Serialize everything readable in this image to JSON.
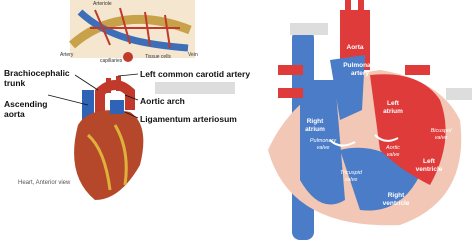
{
  "capillary_diagram": {
    "labels": [
      "Arteriole",
      "Artery",
      "capillaries",
      "Tissue cells",
      "Vein"
    ]
  },
  "heart_anterior": {
    "labels": [
      "Brachiocephalic trunk",
      "Left common carotid artery",
      "Ascending aorta",
      "Aortic arch",
      "Ligamentum arteriosum"
    ],
    "caption": "Heart, Anterior view"
  },
  "heart_section": {
    "labels": [
      "Aorta",
      "Pulmonary artery",
      "Right atrium",
      "Left atrium",
      "Pulmonary valve",
      "Aortic valve",
      "Bicuspid valve",
      "Tricuspid valve",
      "Left ventricle",
      "Right ventricle"
    ]
  }
}
